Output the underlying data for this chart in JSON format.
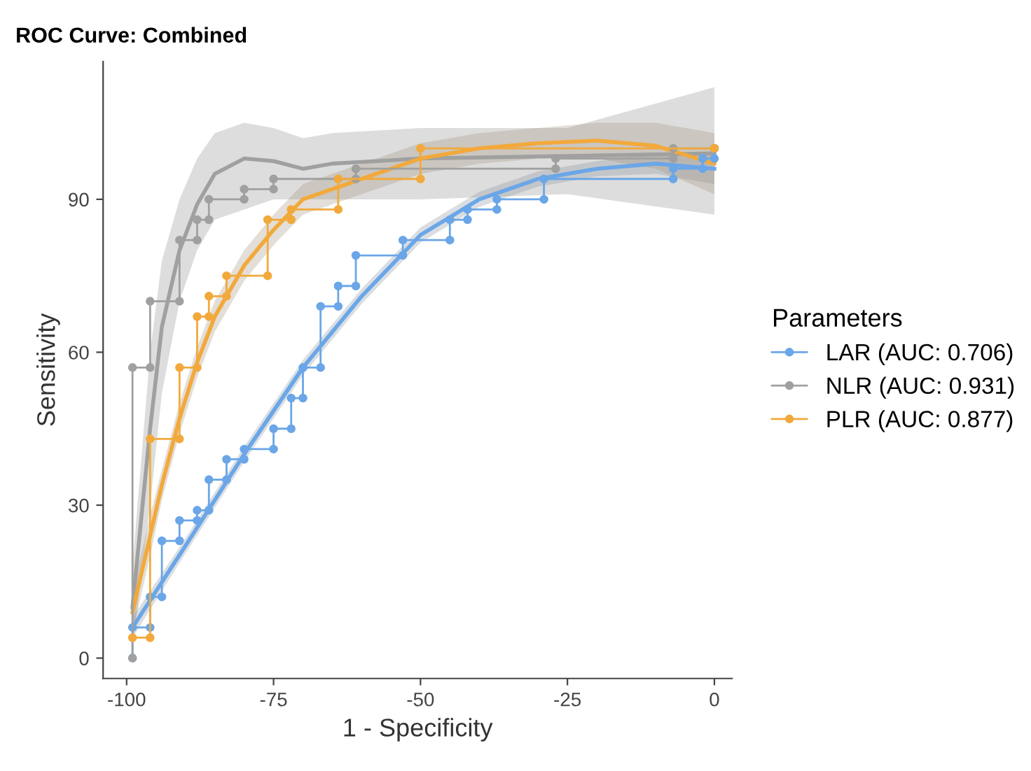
{
  "chart_data": {
    "type": "line",
    "title": "ROC Curve: Combined",
    "xlabel": "1 - Specificity",
    "ylabel": "Sensitivity",
    "legend_title": "Parameters",
    "xlim": [
      -104,
      3
    ],
    "ylim": [
      -4,
      117
    ],
    "xticks": [
      -100,
      -75,
      -50,
      -25,
      0
    ],
    "yticks": [
      0,
      30,
      60,
      90
    ],
    "grid": false,
    "legend": "right",
    "series": [
      {
        "name": "LAR (AUC: 0.706)",
        "color": "#6aa6e8",
        "marker": "circle",
        "x": [
          -99,
          -99,
          -96,
          -96,
          -94,
          -94,
          -91,
          -91,
          -88,
          -88,
          -86,
          -86,
          -83,
          -83,
          -80,
          -80,
          -75,
          -75,
          -72,
          -72,
          -70,
          -70,
          -67,
          -67,
          -64,
          -64,
          -61,
          -61,
          -53,
          -53,
          -45,
          -45,
          -42,
          -42,
          -37,
          -37,
          -29,
          -29,
          -7,
          -7,
          -2,
          -2,
          0,
          0
        ],
        "values": [
          0,
          6,
          6,
          12,
          12,
          23,
          23,
          27,
          27,
          29,
          29,
          35,
          35,
          39,
          39,
          41,
          41,
          45,
          45,
          51,
          51,
          57,
          57,
          69,
          69,
          73,
          73,
          79,
          79,
          82,
          82,
          86,
          86,
          88,
          88,
          90,
          90,
          94,
          94,
          96,
          96,
          98,
          98,
          100
        ]
      },
      {
        "name": "NLR (AUC: 0.931)",
        "color": "#a0a0a0",
        "marker": "circle",
        "x": [
          -99,
          -99,
          -96,
          -96,
          -91,
          -91,
          -88,
          -88,
          -86,
          -86,
          -80,
          -80,
          -75,
          -75,
          -61,
          -61,
          -27,
          -27,
          -7,
          -7,
          0
        ],
        "values": [
          0,
          57,
          57,
          70,
          70,
          82,
          82,
          86,
          86,
          90,
          90,
          92,
          92,
          94,
          94,
          96,
          96,
          98,
          98,
          100,
          100
        ]
      },
      {
        "name": "PLR (AUC: 0.877)",
        "color": "#f2a93b",
        "marker": "circle",
        "x": [
          -99,
          -96,
          -96,
          -91,
          -91,
          -88,
          -88,
          -86,
          -86,
          -83,
          -83,
          -76,
          -76,
          -72,
          -72,
          -64,
          -64,
          -50,
          -50,
          0
        ],
        "values": [
          4,
          4,
          43,
          43,
          57,
          57,
          67,
          67,
          71,
          71,
          75,
          75,
          86,
          86,
          88,
          88,
          94,
          94,
          100,
          100
        ]
      },
      {
        "color": "#6aa6e8",
        "marker": "none",
        "x": [
          -99,
          -90,
          -80,
          -70,
          -60,
          -50,
          -40,
          -30,
          -20,
          -10,
          0
        ],
        "values": [
          6,
          22,
          40,
          57,
          71,
          83,
          90,
          94,
          96,
          97,
          96
        ],
        "lower": [
          4,
          20.5,
          38.5,
          55.5,
          69.5,
          81.5,
          88.5,
          92.5,
          94.5,
          95,
          93
        ],
        "upper": [
          8,
          23.5,
          41.5,
          58.5,
          72.5,
          84.5,
          91.5,
          95.5,
          97.5,
          99,
          99
        ]
      },
      {
        "color": "#a0a0a0",
        "marker": "none",
        "x": [
          -99,
          -96,
          -94,
          -91,
          -88,
          -85,
          -80,
          -75,
          -70,
          -65,
          -50,
          -25,
          0
        ],
        "values": [
          10,
          45,
          65,
          80,
          89,
          95,
          98,
          97.5,
          96,
          97,
          98,
          98.5,
          99
        ],
        "lower": [
          2,
          30,
          52,
          70,
          80,
          86,
          88,
          90,
          90,
          90,
          90,
          91,
          87
        ],
        "upper": [
          18,
          60,
          78,
          90,
          98,
          103,
          105,
          104,
          102,
          103,
          104,
          104,
          112
        ]
      },
      {
        "color": "#f2a93b",
        "marker": "none",
        "x": [
          -99,
          -96,
          -94,
          -91,
          -88,
          -85,
          -80,
          -75,
          -70,
          -60,
          -50,
          -40,
          -30,
          -20,
          -10,
          0
        ],
        "values": [
          9,
          24,
          34,
          47,
          58,
          67,
          77,
          84,
          90,
          94,
          98,
          100,
          101,
          101.5,
          100.5,
          97
        ],
        "lower": [
          5,
          20,
          31,
          44,
          55,
          64,
          74,
          81,
          87,
          91,
          95,
          97,
          98,
          98,
          96,
          91
        ],
        "upper": [
          13,
          28,
          37,
          50,
          61,
          70,
          80,
          87,
          93,
          97,
          101,
          103,
          104,
          105,
          105,
          103
        ]
      }
    ]
  }
}
